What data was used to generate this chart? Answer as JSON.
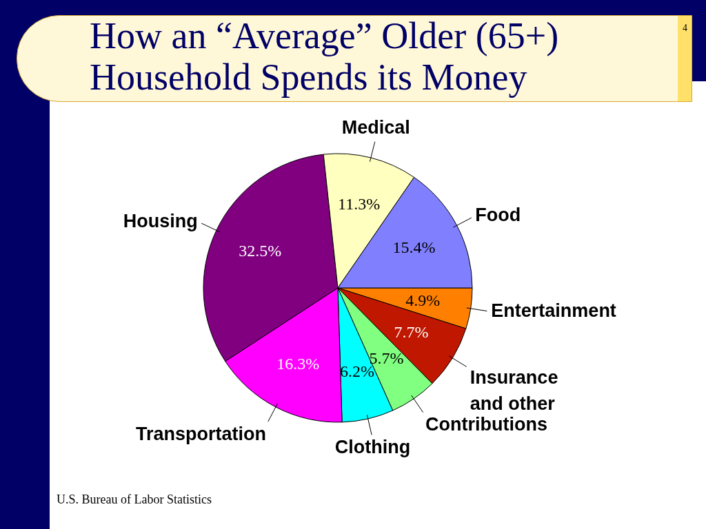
{
  "chart_data": {
    "type": "pie",
    "title": "How an “Average” Older (65+) Household Spends its Money",
    "categories": [
      "Entertainment",
      "Insurance and other",
      "Contributions",
      "Clothing",
      "Transportation",
      "Housing",
      "Medical",
      "Food"
    ],
    "values": [
      4.9,
      7.7,
      5.7,
      6.2,
      16.3,
      32.5,
      11.3,
      15.4
    ],
    "colors": [
      "#ff8000",
      "#c01800",
      "#80ff80",
      "#00ffff",
      "#ff00ff",
      "#800080",
      "#ffffc0",
      "#8080ff"
    ],
    "value_labels": [
      "4.9%",
      "7.7%",
      "5.7%",
      "6.2%",
      "16.3%",
      "32.5%",
      "11.3%",
      "15.4%"
    ],
    "annotations": [
      "U.S. Bureau of Labor Statistics",
      "4"
    ]
  }
}
